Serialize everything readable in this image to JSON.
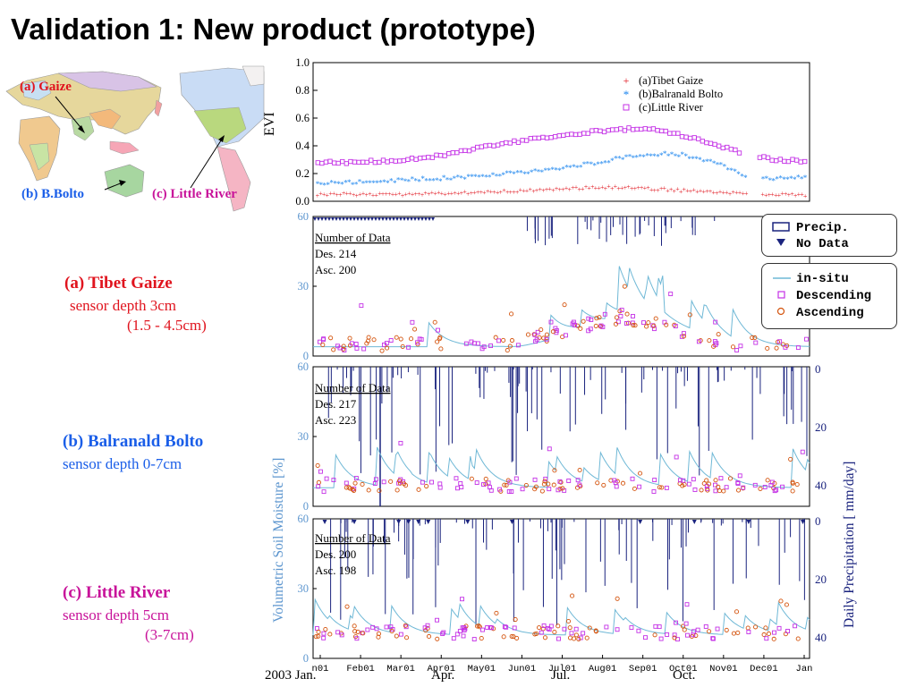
{
  "title": "Validation 1: New product (prototype)",
  "map": {
    "label_a": "(a) Gaize",
    "label_b": "(b) B.Bolto",
    "label_c": "(c) Little River"
  },
  "sites": [
    {
      "name": "(a) Tibet Gaize",
      "depth": "sensor depth 3cm",
      "range": "(1.5 - 4.5cm)",
      "color": "#e0141e"
    },
    {
      "name": "(b) Balranald Bolto",
      "depth": "sensor depth 0-7cm",
      "range": "",
      "color": "#1a5ee8"
    },
    {
      "name": "(c) Little River",
      "depth": "sensor depth 5cm",
      "range": "(3-7cm)",
      "color": "#c8139a"
    }
  ],
  "colors": {
    "tibet": "#e0141e",
    "balranald": "#1a84ee",
    "little_river": "#c431e6",
    "precip": "#1a237e",
    "insitu": "#6fb8d6",
    "ascending": "#d4540e",
    "descending": "#c431e6",
    "left_axis": "#5d96cf",
    "right_axis": "#1a237e"
  },
  "chart_data": [
    {
      "type": "scatter",
      "panel": "evi",
      "ylabel": "EVI",
      "ylim": [
        0.0,
        1.0
      ],
      "yticks": [
        "1.0",
        "0.8",
        "0.6",
        "0.4",
        "0.2",
        "0.0"
      ],
      "legend_position": "top-right",
      "legend": [
        "(a)Tibet Gaize",
        "(b)Balranald Bolto",
        "(c)Little River"
      ],
      "series": [
        {
          "name": "(a)Tibet Gaize",
          "marker": "+",
          "values": [
            0.05,
            0.05,
            0.05,
            0.05,
            0.06,
            0.06,
            0.07,
            0.08,
            0.09,
            0.1,
            0.1,
            0.09,
            0.08,
            0.07,
            0.06,
            0.05,
            0.05
          ]
        },
        {
          "name": "(b)Balranald Bolto",
          "marker": "*",
          "values": [
            0.12,
            0.13,
            0.14,
            0.15,
            0.16,
            0.17,
            0.19,
            0.21,
            0.24,
            0.27,
            0.31,
            0.34,
            0.33,
            0.28,
            0.17,
            0.16,
            0.17
          ]
        },
        {
          "name": "(c)Little River",
          "marker": "square",
          "values": [
            0.28,
            0.28,
            0.29,
            0.3,
            0.33,
            0.37,
            0.41,
            0.45,
            0.47,
            0.5,
            0.52,
            0.52,
            0.47,
            0.41,
            0.34,
            0.3,
            0.29
          ]
        }
      ]
    },
    {
      "type": "bar+scatter",
      "panel": "a",
      "yticks_left": [
        "60",
        "30",
        "0"
      ],
      "annotation": {
        "head": "Number of Data",
        "des": "Des.  214",
        "asc": "Asc.  200"
      },
      "legend_position": "top-right",
      "legend_precip": [
        "Precip.",
        "No Data"
      ],
      "legend_sm": [
        "in-situ",
        "Descending",
        "Ascending"
      ]
    },
    {
      "type": "bar+scatter",
      "panel": "b",
      "yticks_left": [
        "60",
        "30",
        "0"
      ],
      "yticks_right": [
        "0",
        "20",
        "40"
      ],
      "annotation": {
        "head": "Number of Data",
        "des": "Des.  217",
        "asc": "Asc.  223"
      }
    },
    {
      "type": "bar+scatter",
      "panel": "c",
      "yticks_left": [
        "60",
        "30",
        "0"
      ],
      "yticks_right": [
        "0",
        "20",
        "40"
      ],
      "annotation": {
        "head": "Number of Data",
        "des": "Des.  200",
        "asc": "Asc.  198"
      },
      "xticks": [
        "n01",
        "Feb01",
        "Mar01",
        "Apr01",
        "May01",
        "Jun01",
        "Jul01",
        "Aug01",
        "Sep01",
        "Oct01",
        "Nov01",
        "Dec01",
        "Jan"
      ]
    }
  ],
  "axes": {
    "left_label": "Volumetric Soil Moisture [%]",
    "right_label": "Daily Precipitation [ mm/day]",
    "bottom_labels": [
      "2003 Jan.",
      "Apr.",
      "Jul.",
      "Oct."
    ]
  }
}
